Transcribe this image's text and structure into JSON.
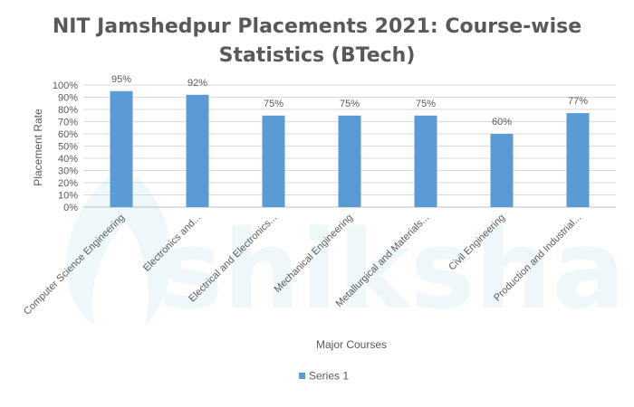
{
  "chart_data": {
    "type": "bar",
    "title_line1": "NIT Jamshedpur Placements 2021: Course-wise",
    "title_line2": "Statistics (BTech)",
    "xlabel": "Major Courses",
    "ylabel": "Placement Rate",
    "categories": [
      "Computer Science Engineering",
      "Electronics and...",
      "Electrical and Electronics...",
      "Mechanical Engineering",
      "Metallurgical and Materials...",
      "Civil Engineering",
      "Production and Industrial..."
    ],
    "series": [
      {
        "name": "Series 1",
        "values": [
          95,
          92,
          75,
          75,
          75,
          60,
          77
        ],
        "labels": [
          "95%",
          "92%",
          "75%",
          "75%",
          "75%",
          "60%",
          "77%"
        ],
        "color": "#5b9bd5"
      }
    ],
    "ylim": [
      0,
      100
    ],
    "yticks": [
      0,
      10,
      20,
      30,
      40,
      50,
      60,
      70,
      80,
      90,
      100
    ],
    "ytick_labels": [
      "0%",
      "10%",
      "20%",
      "30%",
      "40%",
      "50%",
      "60%",
      "70%",
      "80%",
      "90%",
      "100%"
    ],
    "grid": true,
    "legend_position": "bottom",
    "watermark": "shiksha"
  }
}
